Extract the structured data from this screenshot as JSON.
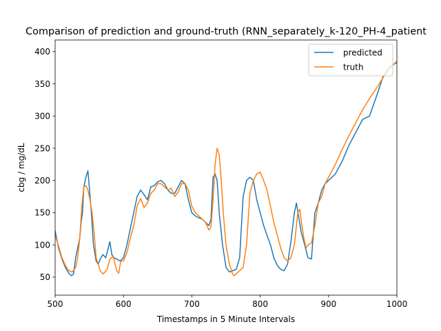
{
  "chart_data": {
    "type": "line",
    "title": "Comparison of prediction and ground-truth (RNN_separately_k-120_PH-4_patient",
    "xlabel": "Timestamps in 5 Minute Intervals",
    "ylabel": "cbg / mg/dL",
    "xlim": [
      500,
      1000
    ],
    "ylim": [
      22,
      418
    ],
    "xticks": [
      500,
      600,
      700,
      800,
      900,
      1000
    ],
    "yticks": [
      50,
      100,
      150,
      200,
      250,
      300,
      350,
      400
    ],
    "grid": false,
    "legend_position": "top-right",
    "series": [
      {
        "name": "predicted",
        "color": "#1f77b4",
        "x": [
          500,
          505,
          510,
          515,
          520,
          524,
          527,
          530,
          533,
          536,
          538,
          540,
          542,
          545,
          548,
          550,
          553,
          556,
          560,
          563,
          566,
          570,
          574,
          577,
          580,
          583,
          586,
          590,
          595,
          600,
          605,
          610,
          615,
          620,
          625,
          630,
          635,
          640,
          645,
          650,
          655,
          660,
          665,
          670,
          675,
          680,
          685,
          690,
          695,
          700,
          705,
          710,
          715,
          720,
          725,
          728,
          731,
          734,
          737,
          740,
          745,
          750,
          755,
          760,
          765,
          770,
          775,
          780,
          785,
          790,
          795,
          800,
          805,
          810,
          815,
          820,
          825,
          830,
          835,
          840,
          845,
          850,
          853,
          856,
          860,
          865,
          870,
          875,
          880,
          885,
          890,
          895,
          900,
          905,
          910,
          920,
          930,
          940,
          950,
          960,
          970,
          980,
          990,
          1000
        ],
        "values": [
          122,
          95,
          78,
          65,
          56,
          52,
          55,
          80,
          95,
          110,
          135,
          150,
          190,
          205,
          215,
          190,
          150,
          100,
          75,
          70,
          78,
          85,
          80,
          92,
          105,
          85,
          80,
          78,
          75,
          80,
          100,
          125,
          150,
          175,
          185,
          178,
          170,
          190,
          192,
          198,
          200,
          195,
          185,
          180,
          180,
          190,
          200,
          195,
          170,
          150,
          145,
          142,
          140,
          135,
          130,
          140,
          205,
          210,
          200,
          150,
          100,
          65,
          58,
          60,
          62,
          80,
          175,
          200,
          205,
          200,
          170,
          150,
          130,
          115,
          100,
          80,
          68,
          62,
          60,
          70,
          105,
          150,
          165,
          145,
          120,
          100,
          80,
          78,
          150,
          165,
          185,
          195,
          200,
          205,
          210,
          230,
          255,
          275,
          295,
          300,
          330,
          362,
          377,
          383
        ]
      },
      {
        "name": "truth",
        "color": "#ff7f0e",
        "x": [
          500,
          505,
          510,
          515,
          520,
          525,
          530,
          533,
          536,
          539,
          542,
          545,
          548,
          551,
          554,
          557,
          560,
          563,
          566,
          570,
          573,
          576,
          580,
          585,
          590,
          593,
          596,
          600,
          605,
          610,
          615,
          620,
          625,
          630,
          635,
          640,
          645,
          650,
          655,
          660,
          665,
          670,
          675,
          680,
          685,
          690,
          695,
          700,
          705,
          710,
          715,
          720,
          725,
          728,
          731,
          734,
          737,
          740,
          743,
          746,
          750,
          755,
          760,
          762,
          765,
          770,
          775,
          780,
          785,
          790,
          795,
          800,
          805,
          810,
          815,
          820,
          825,
          830,
          835,
          840,
          845,
          850,
          855,
          858,
          861,
          864,
          867,
          870,
          875,
          880,
          885,
          890,
          895,
          900,
          910,
          920,
          930,
          940,
          950,
          960,
          970,
          980,
          990,
          1000
        ],
        "values": [
          115,
          98,
          80,
          68,
          60,
          58,
          65,
          80,
          110,
          160,
          190,
          192,
          185,
          170,
          150,
          120,
          80,
          70,
          60,
          55,
          58,
          62,
          78,
          82,
          60,
          56,
          75,
          75,
          88,
          110,
          130,
          160,
          172,
          158,
          165,
          180,
          185,
          195,
          195,
          190,
          185,
          188,
          175,
          182,
          195,
          195,
          185,
          160,
          150,
          145,
          140,
          135,
          123,
          128,
          170,
          225,
          250,
          240,
          200,
          150,
          100,
          70,
          54,
          52,
          55,
          60,
          65,
          100,
          180,
          200,
          210,
          213,
          200,
          185,
          160,
          135,
          115,
          95,
          80,
          75,
          80,
          100,
          150,
          155,
          130,
          110,
          95,
          100,
          103,
          130,
          165,
          175,
          195,
          205,
          225,
          248,
          270,
          290,
          310,
          327,
          343,
          360,
          375,
          385
        ]
      }
    ]
  }
}
